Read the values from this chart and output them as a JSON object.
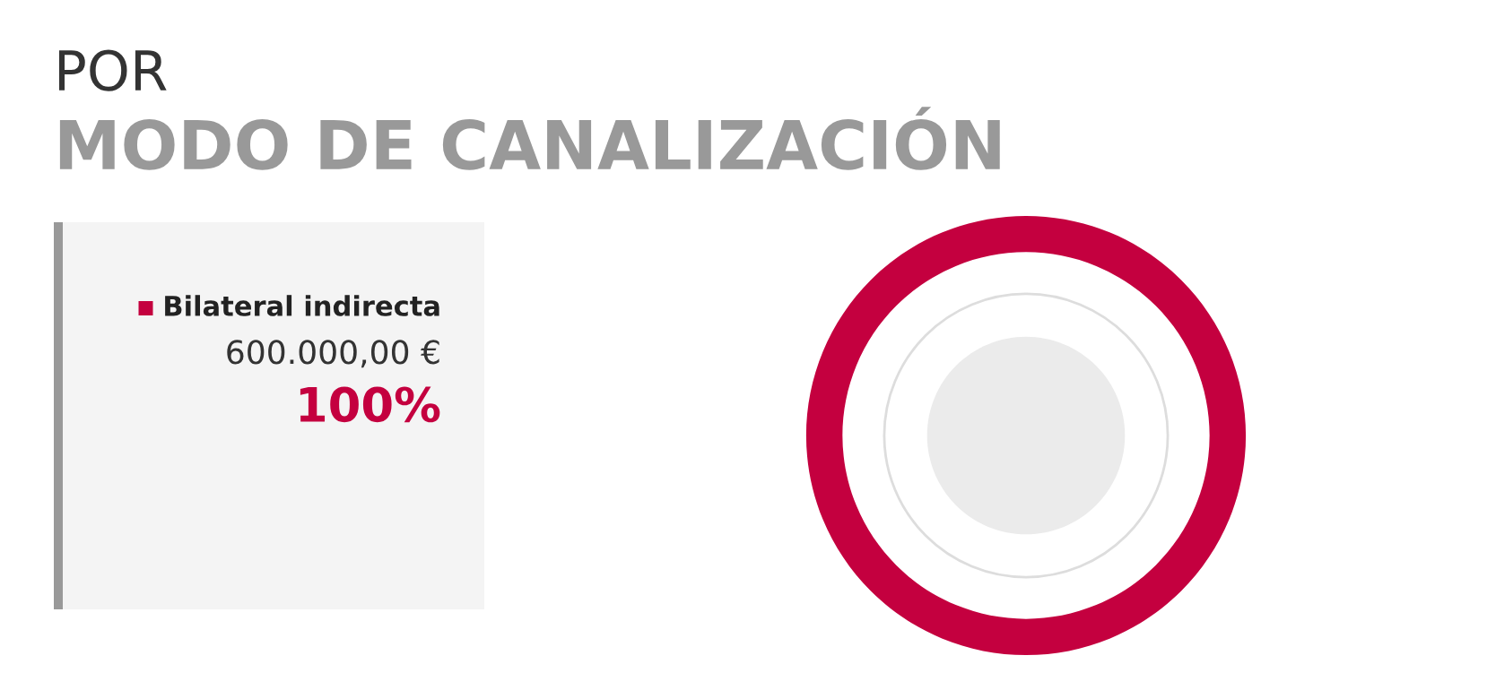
{
  "chart_data": {
    "type": "donut",
    "title": "POR",
    "subtitle": "MODO DE CANALIZACIÓN",
    "categories": [
      "Bilateral indirecta"
    ],
    "values": [
      100
    ],
    "colors": [
      "#c4003f"
    ],
    "annotations": [
      "600.000,00 €",
      "100%"
    ]
  }
}
